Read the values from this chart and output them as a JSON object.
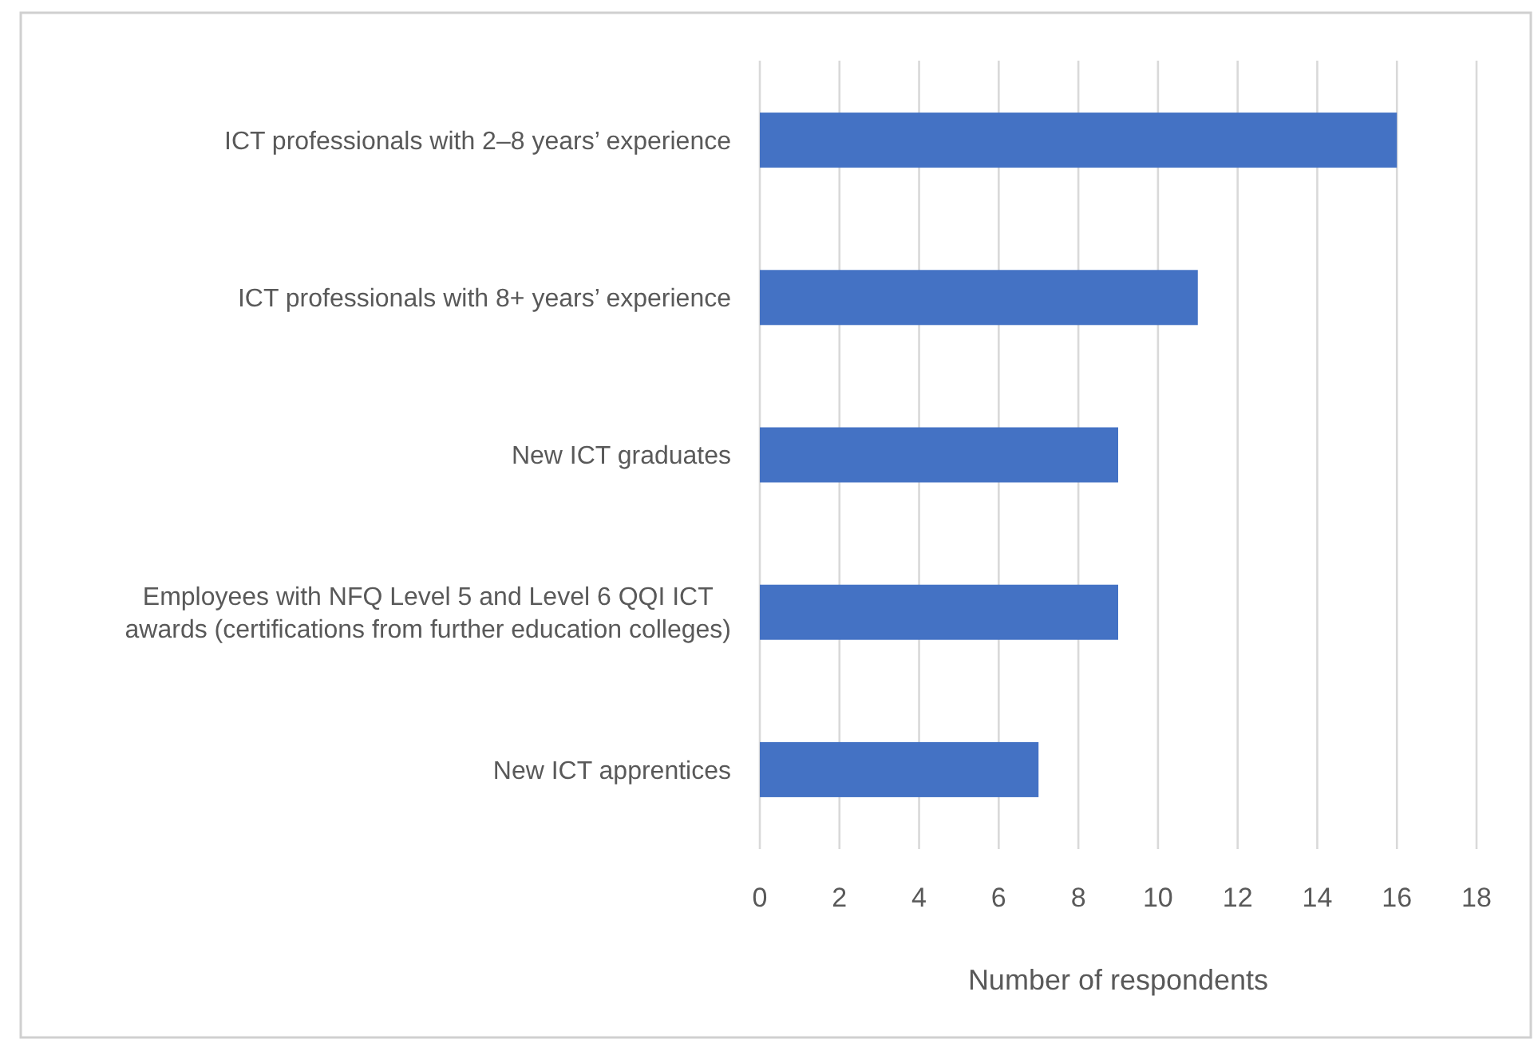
{
  "chart_data": {
    "type": "bar",
    "orientation": "horizontal",
    "categories": [
      "ICT professionals with 2–8 years’ experience",
      "ICT professionals with 8+ years’ experience",
      "New ICT graduates",
      "Employees with NFQ Level 5 and Level 6 QQI ICT awards (certifications from further education colleges)",
      "New ICT apprentices"
    ],
    "values": [
      16,
      11,
      9,
      9,
      7
    ],
    "color": "#4472c4",
    "xlabel": "Number of respondents",
    "xlim": [
      0,
      18
    ],
    "xticks": [
      0,
      2,
      4,
      6,
      8,
      10,
      12,
      14,
      16,
      18
    ],
    "grid": "x"
  }
}
